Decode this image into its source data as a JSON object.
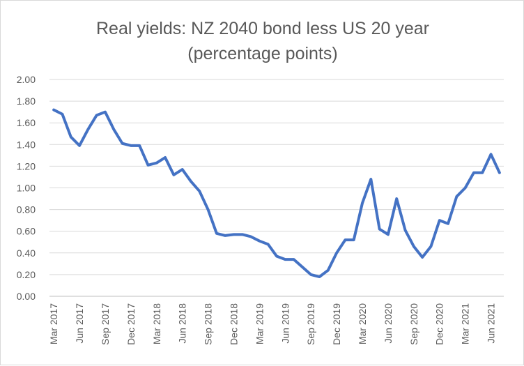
{
  "chart_data": {
    "type": "line",
    "title": "Real yields: NZ 2040 bond less US 20 year",
    "subtitle": "(percentage points)",
    "xlabel": "",
    "ylabel": "",
    "ylim": [
      0,
      2.0
    ],
    "yticks": [
      "0.00",
      "0.20",
      "0.40",
      "0.60",
      "0.80",
      "1.00",
      "1.20",
      "1.40",
      "1.60",
      "1.80",
      "2.00"
    ],
    "xtick_labels": [
      "Mar 2017",
      "Jun 2017",
      "Sep 2017",
      "Dec 2017",
      "Mar 2018",
      "Jun 2018",
      "Sep 2018",
      "Dec 2018",
      "Mar 2019",
      "Jun 2019",
      "Sep 2019",
      "Dec 2019",
      "Mar 2020",
      "Jun 2020",
      "Sep 2020",
      "Dec 2020",
      "Mar 2021",
      "Jun 2021"
    ],
    "grid": true,
    "legend": "none",
    "line_color": "#4472C4",
    "series": [
      {
        "values": [
          1.72,
          1.68,
          1.47,
          1.39,
          1.54,
          1.67,
          1.7,
          1.54,
          1.41,
          1.39,
          1.39,
          1.21,
          1.23,
          1.28,
          1.12,
          1.17,
          1.06,
          0.97,
          0.8,
          0.58,
          0.56,
          0.57,
          0.57,
          0.55,
          0.51,
          0.48,
          0.37,
          0.34,
          0.34,
          0.27,
          0.2,
          0.18,
          0.24,
          0.4,
          0.52,
          0.52,
          0.86,
          1.08,
          0.62,
          0.57,
          0.9,
          0.61,
          0.46,
          0.36,
          0.46,
          0.7,
          0.67,
          0.92,
          1.0,
          1.14,
          1.14,
          1.31,
          1.14
        ]
      }
    ]
  }
}
